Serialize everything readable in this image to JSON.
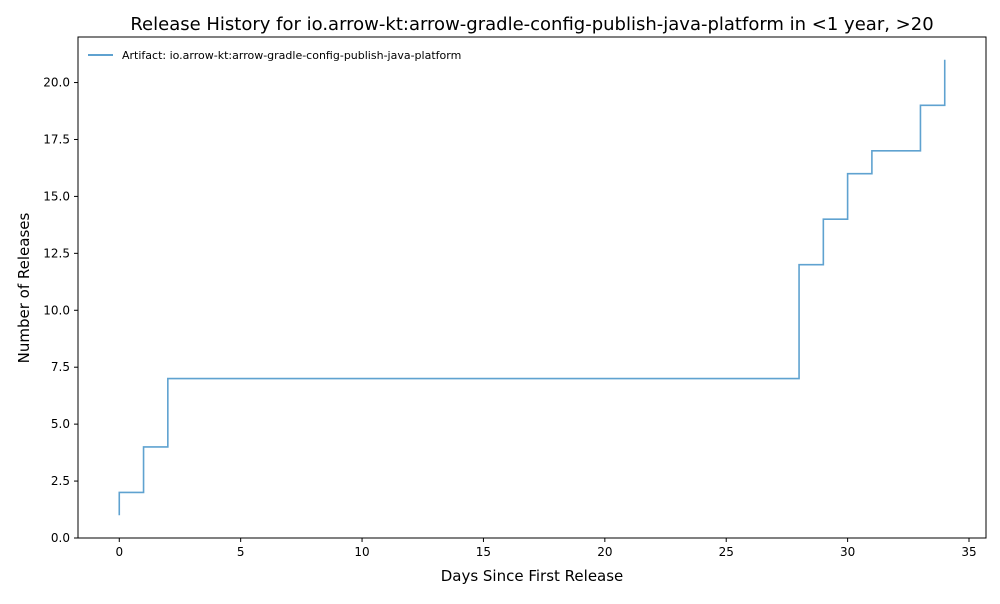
{
  "chart_data": {
    "type": "line",
    "drawstyle": "steps-post",
    "title": "Release History for io.arrow-kt:arrow-gradle-config-publish-java-platform in <1 year, >20",
    "xlabel": "Days Since First Release",
    "ylabel": "Number of Releases",
    "xlim": [
      -1.7,
      35.7
    ],
    "ylim": [
      0,
      22
    ],
    "xticks": [
      0,
      5,
      10,
      15,
      20,
      25,
      30,
      35
    ],
    "xtick_labels": [
      "0",
      "5",
      "10",
      "15",
      "20",
      "25",
      "30",
      "35"
    ],
    "yticks": [
      0,
      2.5,
      5,
      7.5,
      10,
      12.5,
      15,
      17.5,
      20
    ],
    "ytick_labels": [
      "0.0",
      "2.5",
      "5.0",
      "7.5",
      "10.0",
      "12.5",
      "15.0",
      "17.5",
      "20.0"
    ],
    "grid": false,
    "legend_position": "upper-left",
    "series": [
      {
        "name": "Artifact: io.arrow-kt:arrow-gradle-config-publish-java-platform",
        "color": "#5fa2d0",
        "x": [
          0,
          0,
          1,
          2,
          28,
          29,
          30,
          31,
          33,
          34
        ],
        "y": [
          1,
          2,
          4,
          7,
          12,
          14,
          16,
          17,
          19,
          21
        ]
      }
    ]
  }
}
